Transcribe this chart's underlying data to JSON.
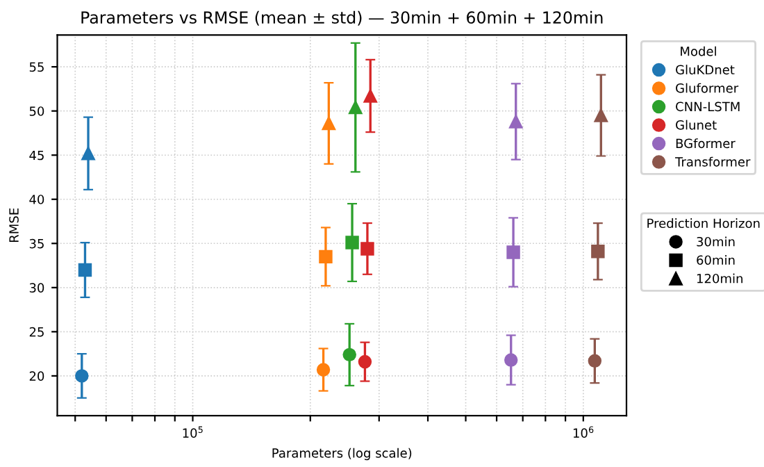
{
  "chart_data": {
    "type": "scatter",
    "title": "Parameters vs RMSE (mean ± std) — 30min + 60min + 120min",
    "xlabel": "Parameters (log scale)",
    "ylabel": "RMSE",
    "log": "x",
    "grid": true,
    "legend": "right",
    "legend_title": [
      "Model",
      "Prediction Horizon"
    ],
    "annotations": [
      "30min",
      "60min",
      "120min"
    ],
    "xlim": [
      45000,
      1290000
    ],
    "ylim": [
      15.5,
      58.6
    ],
    "xticks": [
      {
        "value": 50000,
        "label": null
      },
      {
        "value": 60000,
        "label": null
      },
      {
        "value": 70000,
        "label": null
      },
      {
        "value": 80000,
        "label": null
      },
      {
        "value": 90000,
        "label": null
      },
      {
        "value": 100000,
        "label": "10$^{5}$"
      },
      {
        "value": 200000,
        "label": null
      },
      {
        "value": 300000,
        "label": null
      },
      {
        "value": 400000,
        "label": null
      },
      {
        "value": 500000,
        "label": null
      },
      {
        "value": 600000,
        "label": null
      },
      {
        "value": 700000,
        "label": null
      },
      {
        "value": 800000,
        "label": null
      },
      {
        "value": 900000,
        "label": null
      },
      {
        "value": 1000000,
        "label": "10$^{6}$"
      }
    ],
    "yticks": [
      20,
      25,
      30,
      35,
      40,
      45,
      50,
      55
    ],
    "series": [
      {
        "name": "GluKDnet",
        "color": "#1f77b4",
        "marker": [
          "circle",
          "square",
          "triangle"
        ],
        "x": [
          52000,
          53000,
          54000
        ],
        "values": [
          20.0,
          32.0,
          45.2
        ],
        "errors": [
          2.5,
          3.1,
          4.1
        ]
      },
      {
        "name": "Gluformer",
        "color": "#ff7f0e",
        "marker": [
          "circle",
          "square",
          "triangle"
        ],
        "x": [
          216000,
          219000,
          223000
        ],
        "values": [
          20.7,
          33.5,
          48.6
        ],
        "errors": [
          2.4,
          3.3,
          4.6
        ]
      },
      {
        "name": "CNN-LSTM",
        "color": "#2ca02c",
        "marker": [
          "circle",
          "square",
          "triangle"
        ],
        "x": [
          252000,
          256000,
          261000
        ],
        "values": [
          22.4,
          35.1,
          50.4
        ],
        "errors": [
          3.5,
          4.4,
          7.3
        ]
      },
      {
        "name": "Glunet",
        "color": "#d62728",
        "marker": [
          "circle",
          "square",
          "triangle"
        ],
        "x": [
          276000,
          280000,
          285000
        ],
        "values": [
          21.6,
          34.4,
          51.7
        ],
        "errors": [
          2.2,
          2.9,
          4.1
        ]
      },
      {
        "name": "BGformer",
        "color": "#9467bd",
        "marker": [
          "circle",
          "square",
          "triangle"
        ],
        "x": [
          653000,
          662000,
          672000
        ],
        "values": [
          21.8,
          34.0,
          48.8
        ],
        "errors": [
          2.8,
          3.9,
          4.3
        ]
      },
      {
        "name": "Transformer",
        "color": "#8c564b",
        "marker": [
          "circle",
          "square",
          "triangle"
        ],
        "x": [
          1070000,
          1090000,
          1110000
        ],
        "values": [
          21.7,
          34.1,
          49.5
        ],
        "errors": [
          2.5,
          3.2,
          4.6
        ]
      }
    ]
  }
}
